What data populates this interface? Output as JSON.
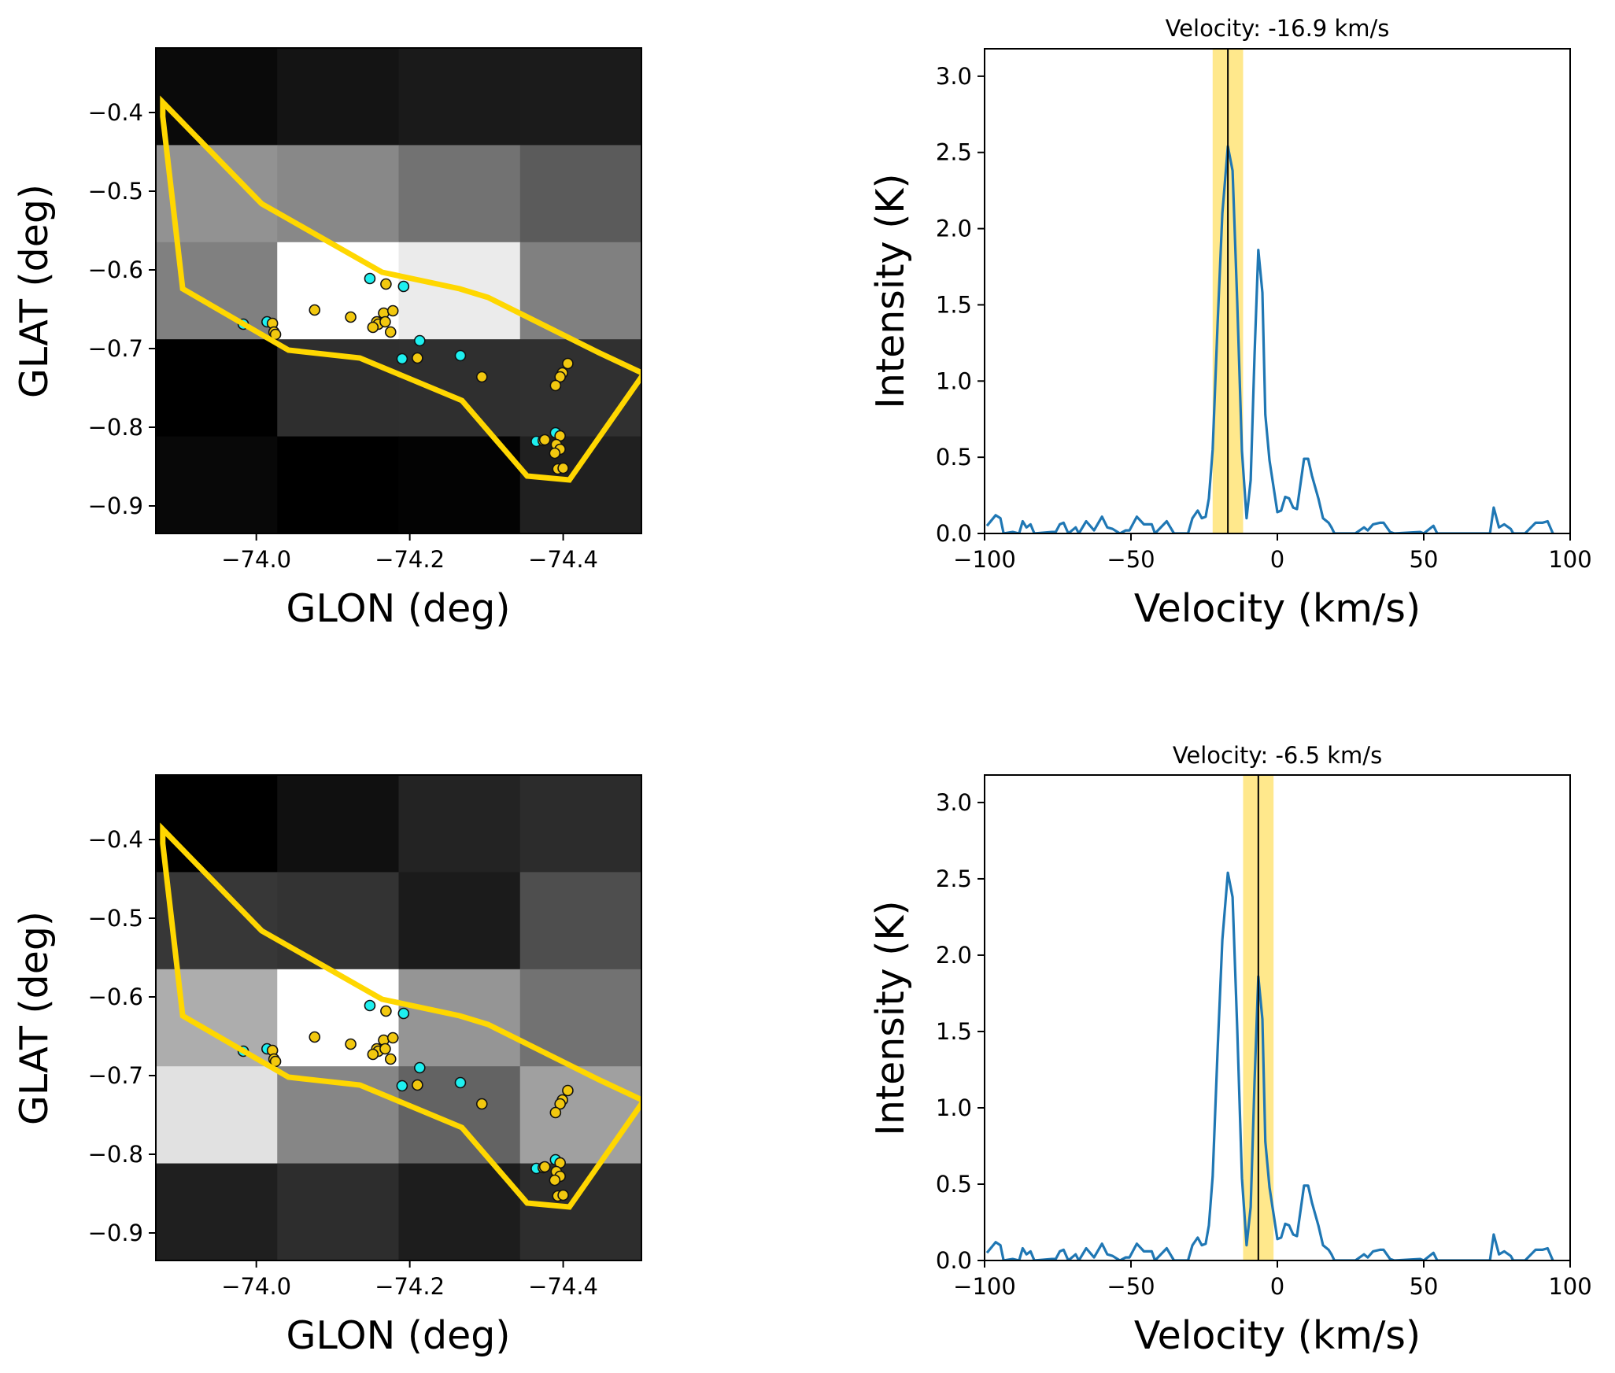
{
  "figure": {
    "panels": [
      "map-top",
      "spectrum-top",
      "map-bottom",
      "spectrum-bottom"
    ]
  },
  "chart_data": [
    {
      "id": "map-top",
      "type": "heatmap",
      "title": "",
      "xlabel": "GLON (deg)",
      "ylabel": "GLAT (deg)",
      "xlim": [
        -73.869,
        -74.502
      ],
      "ylim": [
        -0.935,
        -0.318
      ],
      "xticks": [
        -74.0,
        -74.2,
        -74.4
      ],
      "xtick_labels": [
        "−74.0",
        "−74.2",
        "−74.4"
      ],
      "yticks": [
        -0.4,
        -0.5,
        -0.6,
        -0.7,
        -0.8,
        -0.9
      ],
      "ytick_labels": [
        "−0.4",
        "−0.5",
        "−0.6",
        "−0.7",
        "−0.8",
        "−0.9"
      ],
      "grid": false,
      "colormap": "gray",
      "cells_rows_top_to_bottom": [
        [
          "#0a0a0a",
          "#141414",
          "#1a1a1a",
          "#1b1b1b"
        ],
        [
          "#929292",
          "#888888",
          "#727272",
          "#5b5b5b"
        ],
        [
          "#808080",
          "#ffffff",
          "#ebebeb",
          "#808080"
        ],
        [
          "#000000",
          "#2e2e2e",
          "#2f2f2f",
          "#303030"
        ],
        [
          "#080808",
          "#000000",
          "#030303",
          "#202020"
        ]
      ],
      "overlay_ref": "overlay"
    },
    {
      "id": "spectrum-top",
      "type": "line",
      "title": "Velocity: -16.9 km/s",
      "xlabel": "Velocity (km/s)",
      "ylabel": "Intensity (K)",
      "xlim": [
        -100,
        100
      ],
      "ylim": [
        0,
        3.18
      ],
      "xticks": [
        -100,
        -50,
        0,
        50,
        100
      ],
      "xtick_labels": [
        "−100",
        "−50",
        "0",
        "50",
        "100"
      ],
      "yticks": [
        0.0,
        0.5,
        1.0,
        1.5,
        2.0,
        2.5,
        3.0
      ],
      "ytick_labels": [
        "0.0",
        "0.5",
        "1.0",
        "1.5",
        "2.0",
        "2.5",
        "3.0"
      ],
      "grid": false,
      "marker_velocity": -16.9,
      "highlight_band": [
        -22.1,
        -11.7
      ],
      "series_ref": "spectrum"
    },
    {
      "id": "map-bottom",
      "type": "heatmap",
      "title": "",
      "xlabel": "GLON (deg)",
      "ylabel": "GLAT (deg)",
      "xlim": [
        -73.869,
        -74.502
      ],
      "ylim": [
        -0.935,
        -0.318
      ],
      "xticks": [
        -74.0,
        -74.2,
        -74.4
      ],
      "xtick_labels": [
        "−74.0",
        "−74.2",
        "−74.4"
      ],
      "yticks": [
        -0.4,
        -0.5,
        -0.6,
        -0.7,
        -0.8,
        -0.9
      ],
      "ytick_labels": [
        "−0.4",
        "−0.5",
        "−0.6",
        "−0.7",
        "−0.8",
        "−0.9"
      ],
      "grid": false,
      "colormap": "gray",
      "cells_rows_top_to_bottom": [
        [
          "#000000",
          "#101010",
          "#232323",
          "#2c2c2c"
        ],
        [
          "#373737",
          "#333333",
          "#1b1b1b",
          "#4e4e4e"
        ],
        [
          "#adadad",
          "#ffffff",
          "#959595",
          "#727272"
        ],
        [
          "#e1e1e1",
          "#868686",
          "#636363",
          "#a0a0a0"
        ],
        [
          "#1f1f1f",
          "#2d2d2d",
          "#1d1d1d",
          "#2d2d2d"
        ]
      ],
      "overlay_ref": "overlay"
    },
    {
      "id": "spectrum-bottom",
      "type": "line",
      "title": "Velocity: -6.5 km/s",
      "xlabel": "Velocity (km/s)",
      "ylabel": "Intensity (K)",
      "xlim": [
        -100,
        100
      ],
      "ylim": [
        0,
        3.18
      ],
      "xticks": [
        -100,
        -50,
        0,
        50,
        100
      ],
      "xtick_labels": [
        "−100",
        "−50",
        "0",
        "50",
        "100"
      ],
      "yticks": [
        0.0,
        0.5,
        1.0,
        1.5,
        2.0,
        2.5,
        3.0
      ],
      "ytick_labels": [
        "0.0",
        "0.5",
        "1.0",
        "1.5",
        "2.0",
        "2.5",
        "3.0"
      ],
      "grid": false,
      "marker_velocity": -6.5,
      "highlight_band": [
        -11.7,
        -1.3
      ],
      "series_ref": "spectrum"
    }
  ],
  "overlay": {
    "polygon_color": "#ffd700",
    "polygon_glon_glat": [
      [
        -73.878,
        -0.387
      ],
      [
        -74.007,
        -0.516
      ],
      [
        -74.164,
        -0.603
      ],
      [
        -74.265,
        -0.624
      ],
      [
        -74.302,
        -0.635
      ],
      [
        -74.446,
        -0.705
      ],
      [
        -74.505,
        -0.732
      ],
      [
        -74.408,
        -0.867
      ],
      [
        -74.353,
        -0.862
      ],
      [
        -74.268,
        -0.766
      ],
      [
        -74.135,
        -0.712
      ],
      [
        -74.042,
        -0.702
      ],
      [
        -73.904,
        -0.624
      ],
      [
        -73.878,
        -0.405
      ]
    ],
    "sources": [
      {
        "glon": -74.148,
        "glat": -0.611,
        "class": "cyan"
      },
      {
        "glon": -74.169,
        "glat": -0.618,
        "class": "gold"
      },
      {
        "glon": -74.192,
        "glat": -0.621,
        "class": "cyan"
      },
      {
        "glon": -74.076,
        "glat": -0.651,
        "class": "gold"
      },
      {
        "glon": -74.123,
        "glat": -0.66,
        "class": "gold"
      },
      {
        "glon": -74.166,
        "glat": -0.655,
        "class": "gold"
      },
      {
        "glon": -74.178,
        "glat": -0.652,
        "class": "gold"
      },
      {
        "glon": -73.983,
        "glat": -0.669,
        "class": "cyan"
      },
      {
        "glon": -74.014,
        "glat": -0.666,
        "class": "cyan"
      },
      {
        "glon": -74.021,
        "glat": -0.668,
        "class": "gold"
      },
      {
        "glon": -74.023,
        "glat": -0.679,
        "class": "gold"
      },
      {
        "glon": -74.025,
        "glat": -0.682,
        "class": "gold"
      },
      {
        "glon": -74.157,
        "glat": -0.666,
        "class": "gold"
      },
      {
        "glon": -74.159,
        "glat": -0.669,
        "class": "gold"
      },
      {
        "glon": -74.168,
        "glat": -0.666,
        "class": "gold"
      },
      {
        "glon": -74.152,
        "glat": -0.673,
        "class": "gold"
      },
      {
        "glon": -74.175,
        "glat": -0.679,
        "class": "gold"
      },
      {
        "glon": -74.213,
        "glat": -0.69,
        "class": "cyan"
      },
      {
        "glon": -74.19,
        "glat": -0.713,
        "class": "cyan"
      },
      {
        "glon": -74.21,
        "glat": -0.712,
        "class": "gold"
      },
      {
        "glon": -74.266,
        "glat": -0.709,
        "class": "cyan"
      },
      {
        "glon": -74.294,
        "glat": -0.736,
        "class": "gold"
      },
      {
        "glon": -74.406,
        "glat": -0.719,
        "class": "gold"
      },
      {
        "glon": -74.399,
        "glat": -0.731,
        "class": "gold"
      },
      {
        "glon": -74.396,
        "glat": -0.736,
        "class": "gold"
      },
      {
        "glon": -74.39,
        "glat": -0.747,
        "class": "gold"
      },
      {
        "glon": -74.39,
        "glat": -0.807,
        "class": "cyan"
      },
      {
        "glon": -74.396,
        "glat": -0.811,
        "class": "gold"
      },
      {
        "glon": -74.365,
        "glat": -0.818,
        "class": "cyan"
      },
      {
        "glon": -74.374,
        "glat": -0.817,
        "class": "gold"
      },
      {
        "glon": -74.376,
        "glat": -0.816,
        "class": "gold"
      },
      {
        "glon": -74.391,
        "glat": -0.822,
        "class": "gold"
      },
      {
        "glon": -74.396,
        "glat": -0.828,
        "class": "gold"
      },
      {
        "glon": -74.389,
        "glat": -0.833,
        "class": "gold"
      },
      {
        "glon": -74.393,
        "glat": -0.853,
        "class": "gold"
      },
      {
        "glon": -74.4,
        "glat": -0.852,
        "class": "gold"
      }
    ],
    "source_colors": {
      "cyan": "#1ef0f0",
      "gold": "#f2c80f"
    }
  },
  "spectrum": {
    "color": "#1f77b4",
    "marker_color": "#000000",
    "band_color": "#ffe680",
    "points": [
      [
        -99.2,
        0.05
      ],
      [
        -96.2,
        0.12
      ],
      [
        -94.6,
        0.1
      ],
      [
        -93.5,
        0.0
      ],
      [
        -90.4,
        0.01
      ],
      [
        -88.2,
        0.0
      ],
      [
        -87.0,
        0.08
      ],
      [
        -85.7,
        0.04
      ],
      [
        -84.3,
        0.06
      ],
      [
        -83.0,
        0.0
      ],
      [
        -77.0,
        0.01
      ],
      [
        -75.7,
        0.01
      ],
      [
        -74.3,
        0.06
      ],
      [
        -73.0,
        0.07
      ],
      [
        -71.4,
        0.0
      ],
      [
        -68.9,
        0.04
      ],
      [
        -67.8,
        0.0
      ],
      [
        -65.3,
        0.08
      ],
      [
        -62.6,
        0.02
      ],
      [
        -59.9,
        0.11
      ],
      [
        -58.1,
        0.04
      ],
      [
        -56.3,
        0.03
      ],
      [
        -53.8,
        0.0
      ],
      [
        -51.8,
        0.02
      ],
      [
        -50.5,
        0.02
      ],
      [
        -48.0,
        0.11
      ],
      [
        -45.6,
        0.06
      ],
      [
        -42.9,
        0.06
      ],
      [
        -41.8,
        0.0
      ],
      [
        -37.8,
        0.08
      ],
      [
        -35.3,
        0.0
      ],
      [
        -30.5,
        0.0
      ],
      [
        -29.0,
        0.1
      ],
      [
        -27.2,
        0.15
      ],
      [
        -25.8,
        0.1
      ],
      [
        -24.5,
        0.11
      ],
      [
        -23.4,
        0.23
      ],
      [
        -22.1,
        0.55
      ],
      [
        -20.4,
        1.38
      ],
      [
        -18.8,
        2.1
      ],
      [
        -16.9,
        2.54
      ],
      [
        -15.3,
        2.38
      ],
      [
        -13.7,
        1.52
      ],
      [
        -12.1,
        0.54
      ],
      [
        -10.5,
        0.1
      ],
      [
        -9.1,
        0.35
      ],
      [
        -7.8,
        1.17
      ],
      [
        -6.5,
        1.86
      ],
      [
        -5.1,
        1.58
      ],
      [
        -4.1,
        0.78
      ],
      [
        -2.7,
        0.48
      ],
      [
        0.0,
        0.14
      ],
      [
        1.3,
        0.15
      ],
      [
        2.7,
        0.24
      ],
      [
        4.0,
        0.23
      ],
      [
        5.4,
        0.17
      ],
      [
        6.7,
        0.16
      ],
      [
        9.1,
        0.49
      ],
      [
        10.5,
        0.49
      ],
      [
        11.8,
        0.38
      ],
      [
        14.0,
        0.23
      ],
      [
        15.6,
        0.1
      ],
      [
        17.5,
        0.07
      ],
      [
        18.5,
        0.04
      ],
      [
        19.5,
        0.0
      ],
      [
        26.6,
        0.0
      ],
      [
        29.6,
        0.04
      ],
      [
        30.9,
        0.02
      ],
      [
        32.7,
        0.06
      ],
      [
        35.0,
        0.07
      ],
      [
        36.3,
        0.07
      ],
      [
        38.5,
        0.01
      ],
      [
        40.0,
        0.0
      ],
      [
        48.8,
        0.01
      ],
      [
        50.0,
        0.0
      ],
      [
        53.3,
        0.05
      ],
      [
        54.6,
        0.0
      ],
      [
        67.6,
        0.0
      ],
      [
        72.6,
        0.0
      ],
      [
        73.9,
        0.17
      ],
      [
        75.7,
        0.04
      ],
      [
        77.5,
        0.06
      ],
      [
        79.7,
        0.03
      ],
      [
        80.6,
        0.0
      ],
      [
        84.6,
        0.0
      ],
      [
        88.2,
        0.07
      ],
      [
        90.5,
        0.07
      ],
      [
        92.3,
        0.08
      ],
      [
        94.1,
        0.0
      ]
    ]
  }
}
